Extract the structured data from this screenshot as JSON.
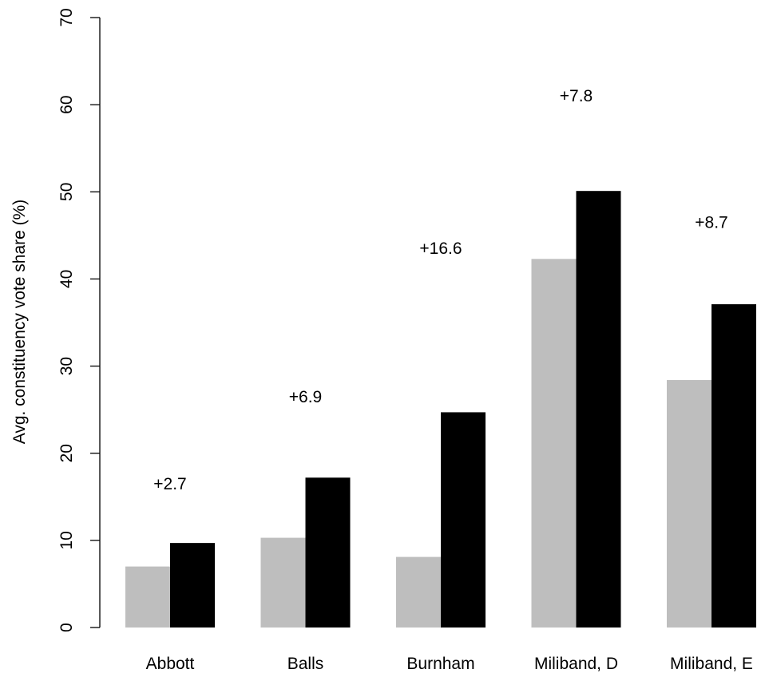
{
  "chart_data": {
    "type": "bar",
    "title": "",
    "xlabel": "",
    "ylabel": "Avg. constituency vote share (%)",
    "ylim": [
      0,
      70
    ],
    "yticks": [
      0,
      10,
      20,
      30,
      40,
      50,
      60,
      70
    ],
    "ytick_labels": [
      "0",
      "10",
      "20",
      "30",
      "40",
      "50",
      "60",
      "70"
    ],
    "grid": false,
    "legend": null,
    "categories": [
      "Abbott",
      "Balls",
      "Burnham",
      "Miliband, D",
      "Miliband, E"
    ],
    "series": [
      {
        "values": [
          7.0,
          10.3,
          8.1,
          42.3,
          28.4
        ],
        "color": "#bebebe"
      },
      {
        "values": [
          9.7,
          17.2,
          24.7,
          50.1,
          37.1
        ],
        "color": "#000000"
      }
    ],
    "annotations": [
      "+2.7",
      "+6.9",
      "+16.6",
      "+7.8",
      "+8.7"
    ],
    "annotation_y": [
      16.5,
      26.5,
      43.5,
      61.0,
      46.5
    ]
  }
}
